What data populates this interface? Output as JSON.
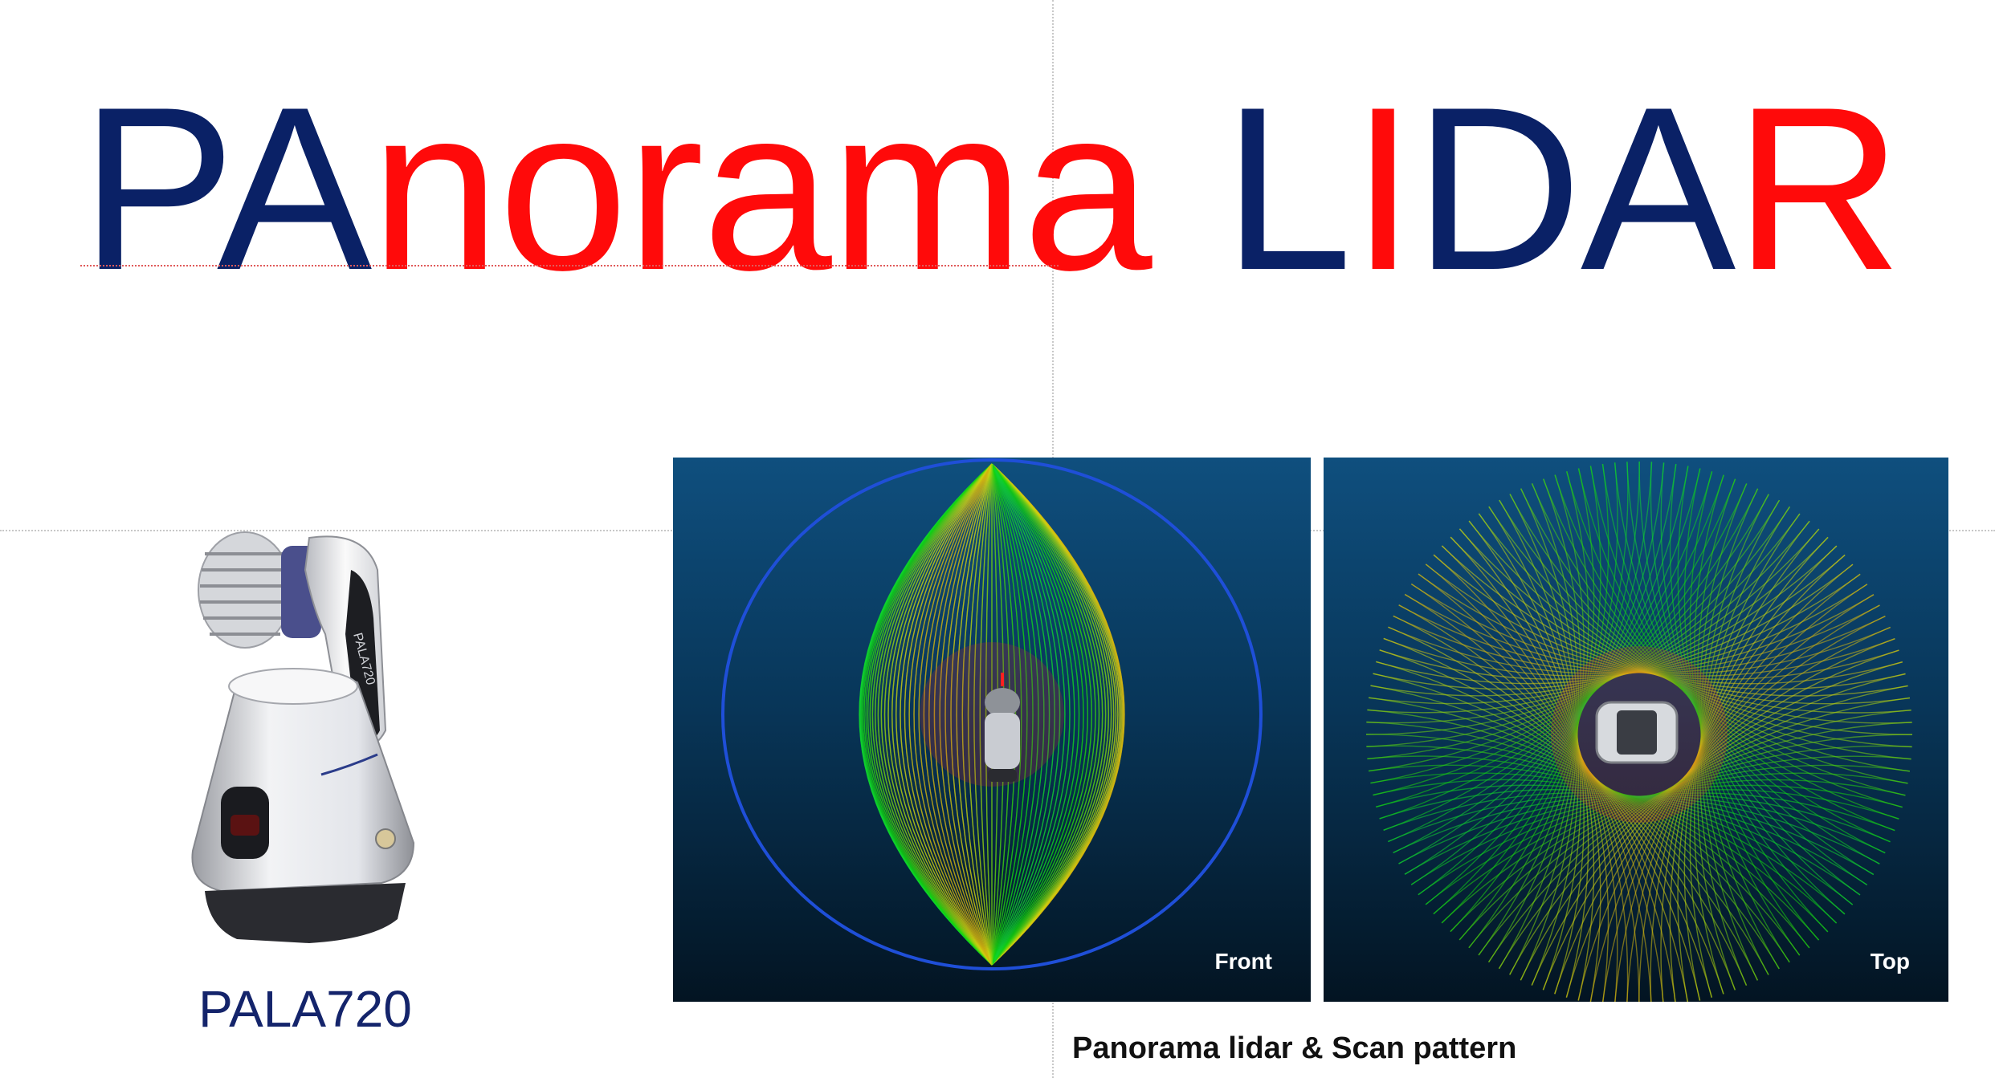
{
  "title": {
    "segments": [
      {
        "text": "PA",
        "color": "#0a2166"
      },
      {
        "text": "norama",
        "color": "#ff0a0a"
      },
      {
        "text": "L",
        "color": "#0a2166",
        "gap": true
      },
      {
        "text": "I",
        "color": "#ff0a0a"
      },
      {
        "text": "DA",
        "color": "#0a2166"
      },
      {
        "text": "R",
        "color": "#ff0a0a"
      }
    ]
  },
  "product": {
    "name": "PALA720",
    "model_marking": "PALA720"
  },
  "panels": [
    {
      "label": "Front",
      "view": "front"
    },
    {
      "label": "Top",
      "view": "top"
    }
  ],
  "caption": "Panorama lidar & Scan pattern"
}
